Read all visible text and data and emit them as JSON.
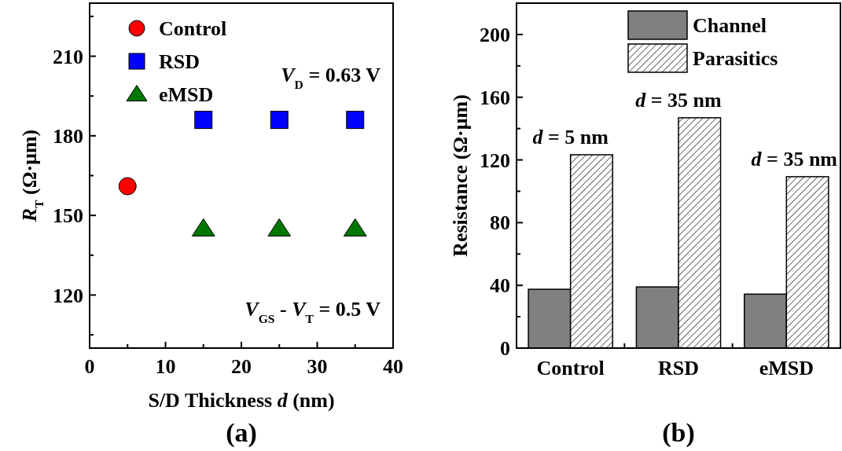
{
  "chart_data": [
    {
      "type": "scatter",
      "title": "(a)",
      "xlabel": "S/D Thickness d (nm)",
      "ylabel": "R$_{T}$  (Ω·μm)",
      "xlim": [
        0,
        40
      ],
      "xticks": [
        0,
        {
          "value": 5,
          "label": null
        },
        10,
        {
          "value": 15,
          "label": null
        },
        20,
        {
          "value": 25,
          "label": null
        },
        30,
        {
          "value": 35,
          "label": null
        },
        40
      ],
      "ylim": [
        100,
        230
      ],
      "yticks": [
        {
          "value": 105,
          "label": null
        },
        120,
        {
          "value": 135,
          "label": null
        },
        150,
        {
          "value": 165,
          "label": null
        },
        180,
        {
          "value": 195,
          "label": null
        },
        210,
        {
          "value": 225,
          "label": null
        }
      ],
      "legend": "top left",
      "grid": false,
      "annotations": [
        "V$_{D}$ = 0.63 V",
        "V$_{GS}$ - V$_{T}$ = 0.5 V"
      ],
      "series": [
        {
          "name": "Control",
          "color": "#ff0000",
          "marker": "circle",
          "x": [
            5
          ],
          "values": [
            161
          ]
        },
        {
          "name": "RSD",
          "color": "#0000ff",
          "marker": "square",
          "x": [
            15,
            25,
            35
          ],
          "values": [
            186,
            186,
            186
          ]
        },
        {
          "name": "eMSD",
          "color": "#007700",
          "marker": "triangle",
          "x": [
            15,
            25,
            35
          ],
          "values": [
            145,
            145,
            145
          ]
        }
      ]
    },
    {
      "type": "bar",
      "title": "(b)",
      "ylabel": "Resistance  (Ω·μm)",
      "categories": [
        "Control",
        "RSD",
        "eMSD"
      ],
      "ylim": [
        0,
        220
      ],
      "yticks": [
        0,
        {
          "value": 20,
          "label": null
        },
        40,
        {
          "value": 60,
          "label": null
        },
        80,
        {
          "value": 100,
          "label": null
        },
        120,
        {
          "value": 140,
          "label": null
        },
        160,
        {
          "value": 180,
          "label": null
        },
        200
      ],
      "legend": "top right",
      "grid": false,
      "annotations": [
        {
          "text": "d = 5 nm",
          "x": "Control",
          "y": 123.3
        },
        {
          "text": "d = 35 nm",
          "x": "RSD",
          "y": 146.9
        },
        {
          "text": "d = 35 nm",
          "x": "eMSD",
          "y": 109.3
        }
      ],
      "series": [
        {
          "name": "Channel",
          "color": "#808080",
          "values": [
            37.5,
            39,
            34.4
          ]
        },
        {
          "name": "Parasitics",
          "color": "#000000",
          "values": [
            123.3,
            146.9,
            109.3
          ]
        }
      ]
    }
  ]
}
